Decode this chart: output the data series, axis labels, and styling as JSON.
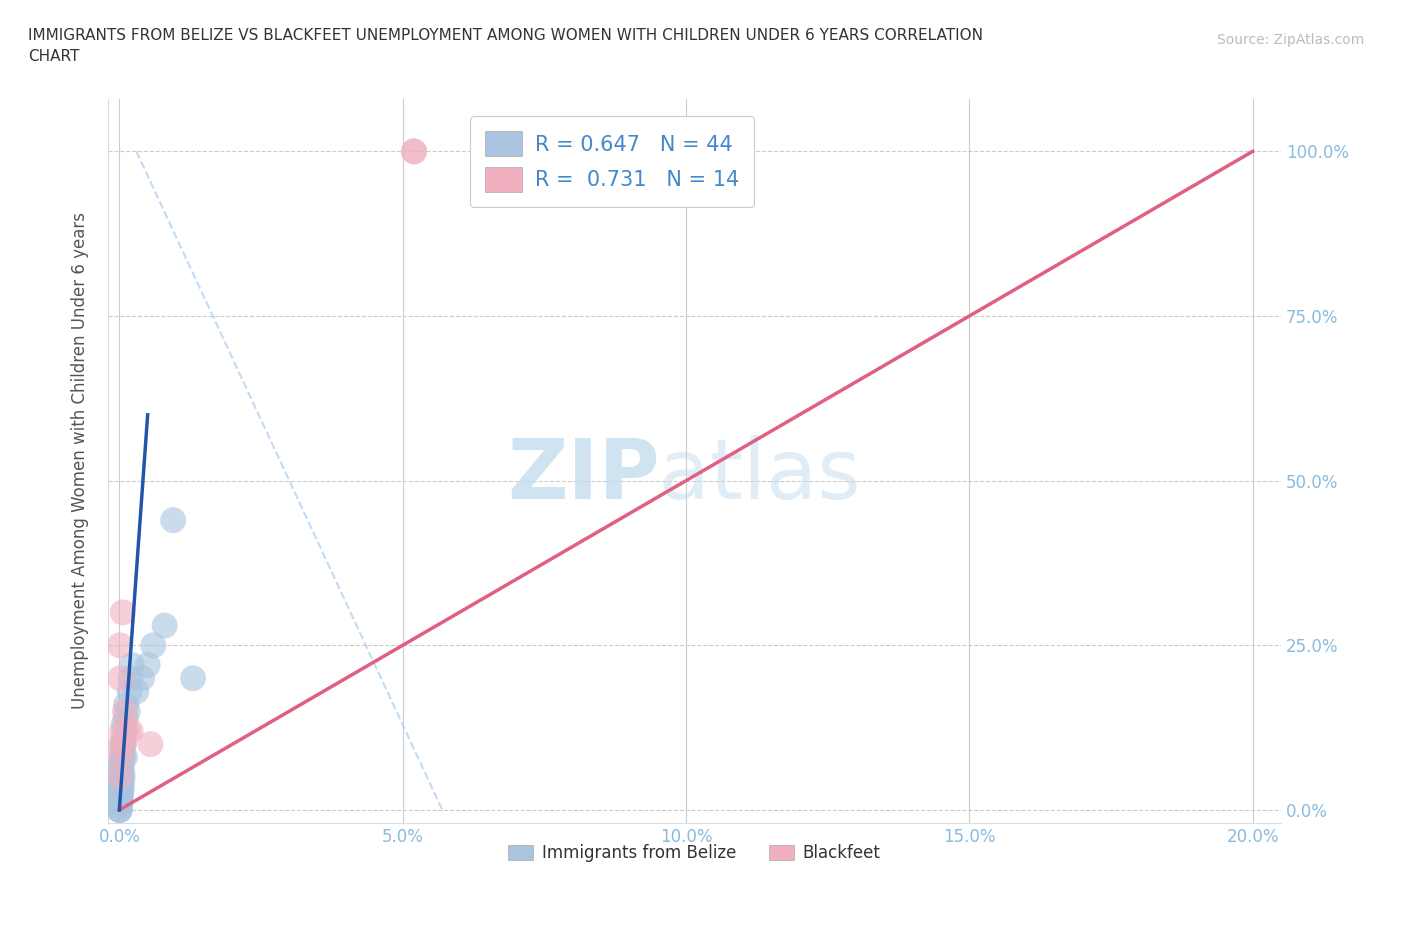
{
  "title": "IMMIGRANTS FROM BELIZE VS BLACKFEET UNEMPLOYMENT AMONG WOMEN WITH CHILDREN UNDER 6 YEARS CORRELATION\nCHART",
  "source": "Source: ZipAtlas.com",
  "xlabel": "",
  "ylabel": "Unemployment Among Women with Children Under 6 years",
  "blue_label": "Immigrants from Belize",
  "pink_label": "Blackfeet",
  "blue_R": 0.647,
  "blue_N": 44,
  "pink_R": 0.731,
  "pink_N": 14,
  "blue_color": "#a8c4e0",
  "blue_line_color": "#2255aa",
  "pink_color": "#f0b0c0",
  "pink_line_color": "#e06080",
  "blue_scatter_x": [
    0.0,
    0.0,
    0.0001,
    0.0001,
    0.0001,
    0.0001,
    0.0001,
    0.0001,
    0.0001,
    0.0002,
    0.0002,
    0.0002,
    0.0002,
    0.0002,
    0.0002,
    0.0003,
    0.0003,
    0.0003,
    0.0003,
    0.0004,
    0.0004,
    0.0005,
    0.0005,
    0.0005,
    0.0006,
    0.0006,
    0.0007,
    0.0008,
    0.0008,
    0.0009,
    0.001,
    0.0011,
    0.0012,
    0.0015,
    0.0018,
    0.002,
    0.0022,
    0.003,
    0.004,
    0.005,
    0.006,
    0.008,
    0.0095,
    0.013
  ],
  "blue_scatter_y": [
    0.0,
    0.0,
    0.0,
    0.01,
    0.01,
    0.01,
    0.02,
    0.02,
    0.03,
    0.01,
    0.02,
    0.03,
    0.04,
    0.05,
    0.06,
    0.02,
    0.03,
    0.05,
    0.07,
    0.03,
    0.08,
    0.04,
    0.06,
    0.09,
    0.05,
    0.1,
    0.08,
    0.1,
    0.13,
    0.12,
    0.08,
    0.14,
    0.16,
    0.15,
    0.18,
    0.2,
    0.22,
    0.18,
    0.2,
    0.22,
    0.25,
    0.28,
    0.44,
    0.2
  ],
  "pink_scatter_x": [
    0.0001,
    0.0001,
    0.0002,
    0.0002,
    0.0003,
    0.0005,
    0.0006,
    0.0008,
    0.001,
    0.0015,
    0.002,
    0.0055,
    0.052,
    0.052
  ],
  "pink_scatter_y": [
    0.05,
    0.25,
    0.1,
    0.2,
    0.08,
    0.12,
    0.3,
    0.1,
    0.15,
    0.12,
    0.12,
    0.1,
    1.0,
    1.0
  ],
  "blue_line_x": [
    0.0,
    0.005
  ],
  "blue_line_y": [
    0.0,
    0.6
  ],
  "pink_line_x": [
    0.0,
    0.2
  ],
  "pink_line_y": [
    0.0,
    1.0
  ],
  "dashed_line_x": [
    0.003,
    0.057
  ],
  "dashed_line_y": [
    1.0,
    0.0
  ],
  "xlim": [
    -0.002,
    0.205
  ],
  "ylim": [
    -0.02,
    1.08
  ],
  "yticks": [
    0.0,
    0.25,
    0.5,
    0.75,
    1.0
  ],
  "ytick_labels": [
    "0.0%",
    "25.0%",
    "50.0%",
    "75.0%",
    "100.0%"
  ],
  "xticks": [
    0.0,
    0.05,
    0.1,
    0.15,
    0.2
  ],
  "xtick_labels": [
    "0.0%",
    "5.0%",
    "10.0%",
    "15.0%",
    "20.0%"
  ],
  "watermark_zip": "ZIP",
  "watermark_atlas": "atlas",
  "background_color": "#ffffff",
  "grid_color": "#cccccc"
}
